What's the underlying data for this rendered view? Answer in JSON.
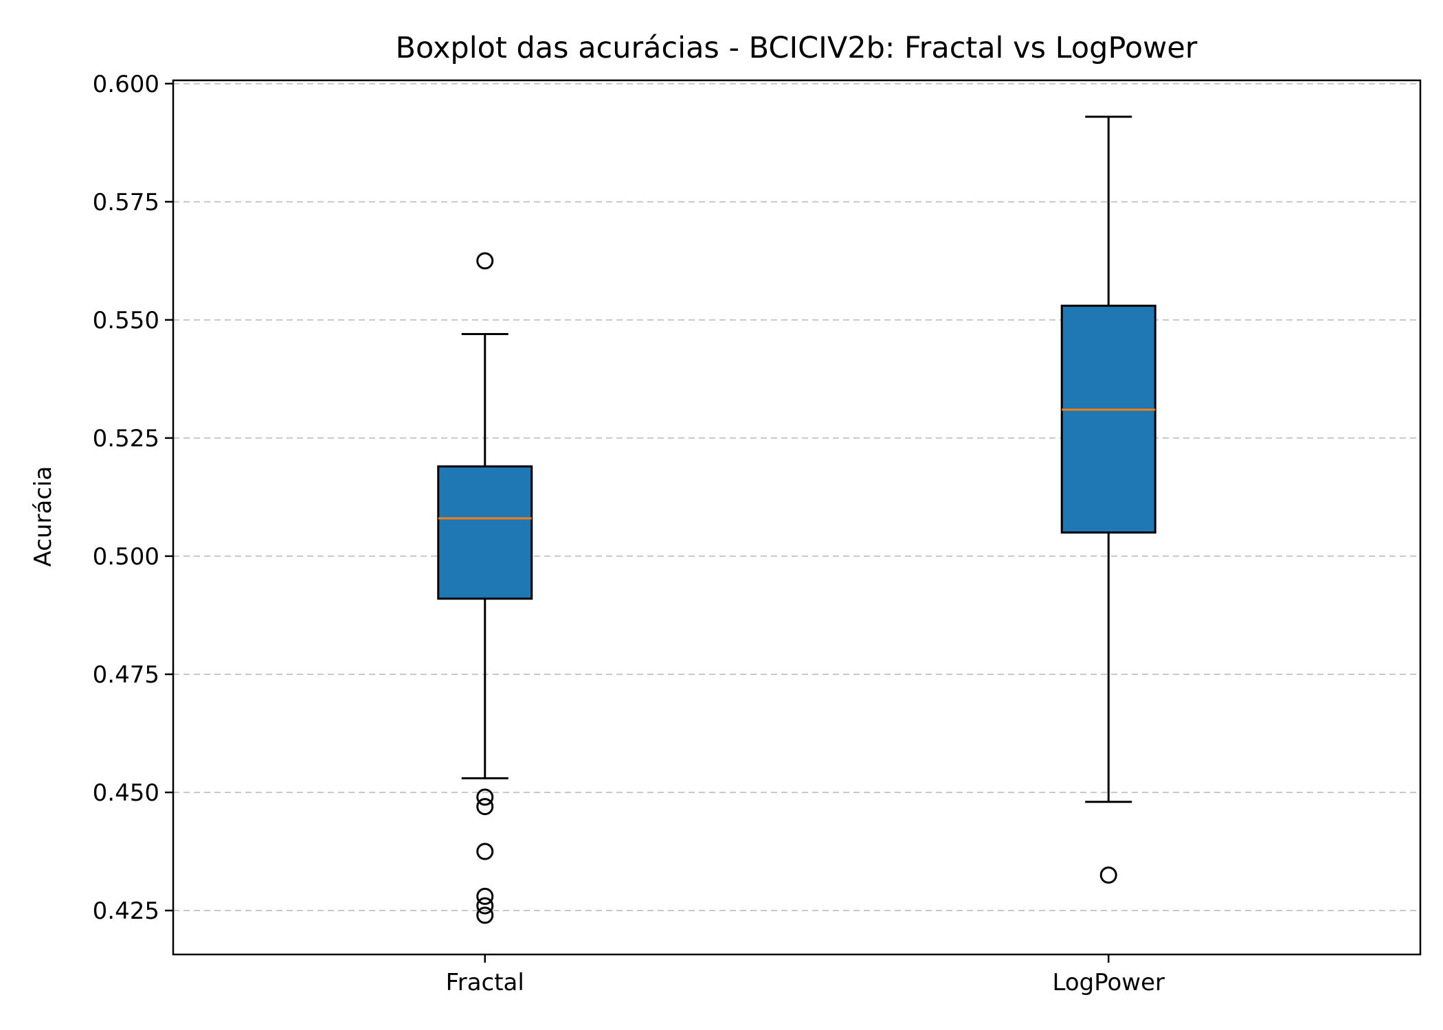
{
  "chart_data": {
    "type": "boxplot",
    "title": "Boxplot das acurácias - BCICIV2b: Fractal vs LogPower",
    "xlabel": "",
    "ylabel": "Acurácia",
    "ylim": [
      0.4157,
      0.6007
    ],
    "yticks": [
      0.425,
      0.45,
      0.475,
      0.5,
      0.525,
      0.55,
      0.575,
      0.6
    ],
    "ytick_labels": [
      "0.425",
      "0.450",
      "0.475",
      "0.500",
      "0.525",
      "0.550",
      "0.575",
      "0.600"
    ],
    "grid": "y-dashed",
    "categories": [
      "Fractal",
      "LogPower"
    ],
    "boxes": [
      {
        "name": "Fractal",
        "whisker_low": 0.453,
        "q1": 0.491,
        "median": 0.508,
        "q3": 0.519,
        "whisker_high": 0.547,
        "outliers": [
          0.5625,
          0.449,
          0.447,
          0.4375,
          0.428,
          0.426,
          0.424
        ]
      },
      {
        "name": "LogPower",
        "whisker_low": 0.448,
        "q1": 0.505,
        "median": 0.531,
        "q3": 0.553,
        "whisker_high": 0.593,
        "outliers": [
          0.4325
        ]
      }
    ],
    "colors": {
      "box_fill": "#1f77b4",
      "median": "#ff7f0e",
      "grid": "#c8c8c8"
    }
  }
}
